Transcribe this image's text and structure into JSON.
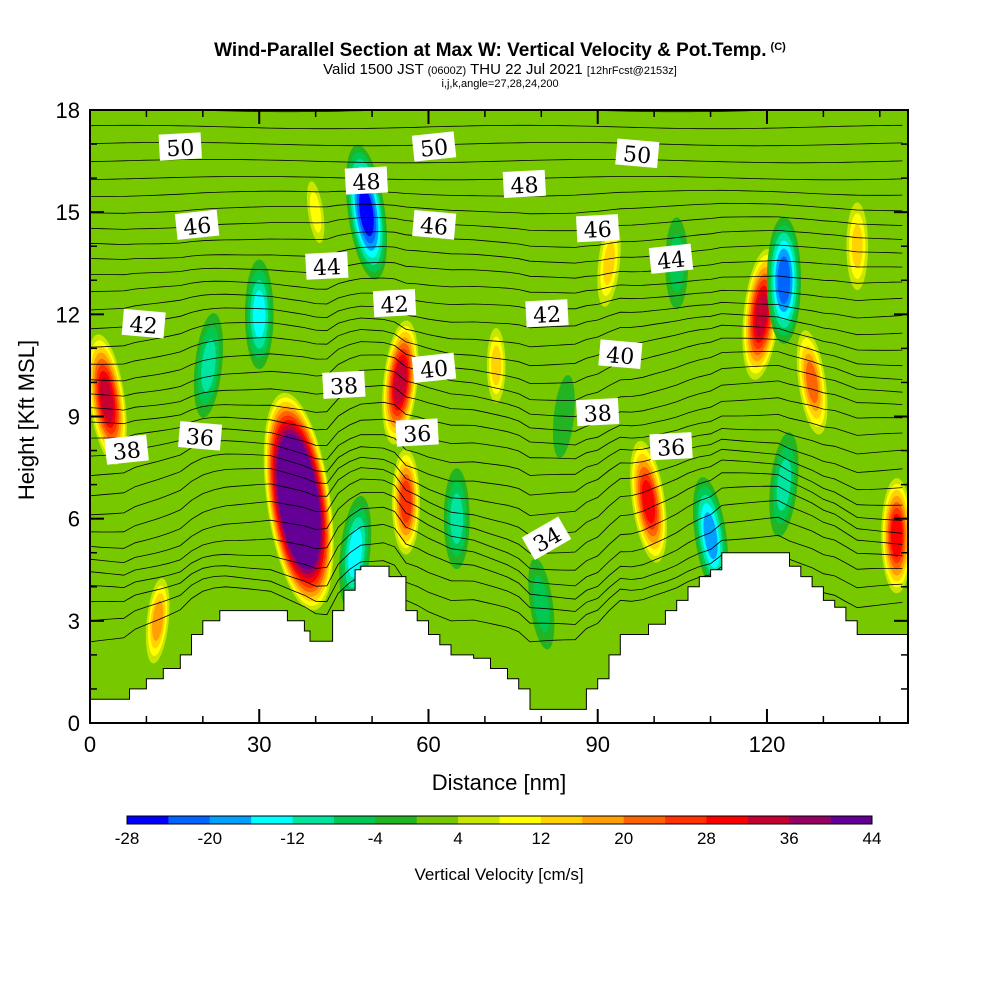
{
  "header": {
    "title": "Wind-Parallel Section at Max W: Vertical Velocity & Pot.Temp.",
    "copyright": "(C)",
    "valid_prefix": "Valid 1500 JST",
    "valid_z": "(0600Z)",
    "valid_date": "THU 22 Jul 2021",
    "fcst": "[12hrFcst@2153z]",
    "indices": "i,j,k,angle=27,28,24,200"
  },
  "chart_data": {
    "type": "heatmap",
    "xlabel": "Distance [nm]",
    "ylabel": "Height [Kft MSL]",
    "xlim": [
      0,
      145
    ],
    "ylim": [
      0,
      18
    ],
    "x_ticks": [
      0,
      30,
      60,
      90,
      120
    ],
    "y_ticks": [
      0,
      3,
      6,
      9,
      12,
      15,
      18
    ],
    "colorbar": {
      "label": "Vertical Velocity [cm/s]",
      "tick_labels": [
        "-28",
        "-20",
        "-12",
        "-4",
        "4",
        "12",
        "20",
        "28",
        "36",
        "44"
      ],
      "colors": [
        "#0000ff",
        "#0064ff",
        "#00a0ff",
        "#00ffff",
        "#00e6a0",
        "#00c850",
        "#22b422",
        "#78c800",
        "#c8e600",
        "#ffff00",
        "#ffd200",
        "#ffa000",
        "#ff6400",
        "#ff3200",
        "#ff0000",
        "#c80032",
        "#960064",
        "#640096"
      ]
    },
    "background_value": -4,
    "velocity_cells": [
      {
        "x": 37,
        "y": 6.5,
        "w": 68
      },
      {
        "x": 55,
        "y": 10.0,
        "w": 30
      },
      {
        "x": 56,
        "y": 6.5,
        "w": 22
      },
      {
        "x": 3,
        "y": 9.5,
        "w": 28
      },
      {
        "x": 21,
        "y": 10.5,
        "w": -16
      },
      {
        "x": 30,
        "y": 12.0,
        "w": -18
      },
      {
        "x": 49,
        "y": 15.0,
        "w": -30
      },
      {
        "x": 47,
        "y": 5.0,
        "w": -20
      },
      {
        "x": 65,
        "y": 6.0,
        "w": -14
      },
      {
        "x": 99,
        "y": 6.5,
        "w": 24
      },
      {
        "x": 119,
        "y": 12.0,
        "w": 28
      },
      {
        "x": 123,
        "y": 13.0,
        "w": -26
      },
      {
        "x": 110,
        "y": 5.5,
        "w": -22
      },
      {
        "x": 123,
        "y": 7.0,
        "w": -16
      },
      {
        "x": 143,
        "y": 5.5,
        "w": 26
      },
      {
        "x": 128,
        "y": 10.0,
        "w": 16
      },
      {
        "x": 12,
        "y": 3.0,
        "w": 14
      },
      {
        "x": 72,
        "y": 10.5,
        "w": 10
      },
      {
        "x": 80,
        "y": 3.5,
        "w": -10
      },
      {
        "x": 92,
        "y": 13.5,
        "w": 8
      },
      {
        "x": 104,
        "y": 13.5,
        "w": -10
      },
      {
        "x": 40,
        "y": 15.0,
        "w": 6
      },
      {
        "x": 84,
        "y": 9.0,
        "w": -6
      },
      {
        "x": 136,
        "y": 14.0,
        "w": 8
      }
    ],
    "theta_labels": [
      {
        "text": "50",
        "x": 16,
        "y": 16.9
      },
      {
        "text": "50",
        "x": 61,
        "y": 16.9
      },
      {
        "text": "50",
        "x": 97,
        "y": 16.7
      },
      {
        "text": "48",
        "x": 49,
        "y": 15.9
      },
      {
        "text": "48",
        "x": 77,
        "y": 15.8
      },
      {
        "text": "46",
        "x": 19,
        "y": 14.6
      },
      {
        "text": "46",
        "x": 61,
        "y": 14.6
      },
      {
        "text": "46",
        "x": 90,
        "y": 14.5
      },
      {
        "text": "44",
        "x": 42,
        "y": 13.4
      },
      {
        "text": "44",
        "x": 103,
        "y": 13.6
      },
      {
        "text": "42",
        "x": 9.5,
        "y": 11.7
      },
      {
        "text": "42",
        "x": 54,
        "y": 12.3
      },
      {
        "text": "42",
        "x": 81,
        "y": 12.0
      },
      {
        "text": "40",
        "x": 61,
        "y": 10.4
      },
      {
        "text": "40",
        "x": 94,
        "y": 10.8
      },
      {
        "text": "38",
        "x": 45,
        "y": 9.9
      },
      {
        "text": "38",
        "x": 90,
        "y": 9.1
      },
      {
        "text": "38",
        "x": 6.5,
        "y": 8.0
      },
      {
        "text": "36",
        "x": 19.5,
        "y": 8.4
      },
      {
        "text": "36",
        "x": 58,
        "y": 8.5
      },
      {
        "text": "36",
        "x": 103,
        "y": 8.1
      },
      {
        "text": "34",
        "x": 81,
        "y": 5.4
      }
    ],
    "terrain": [
      [
        0,
        0.7
      ],
      [
        6,
        0.7
      ],
      [
        7,
        1.0
      ],
      [
        10,
        1.3
      ],
      [
        13,
        1.6
      ],
      [
        16,
        2.0
      ],
      [
        18,
        2.6
      ],
      [
        20,
        3.0
      ],
      [
        23,
        3.3
      ],
      [
        32,
        3.3
      ],
      [
        35,
        3.0
      ],
      [
        38,
        2.7
      ],
      [
        39,
        2.4
      ],
      [
        42,
        2.4
      ],
      [
        43,
        3.3
      ],
      [
        45,
        3.9
      ],
      [
        47,
        4.5
      ],
      [
        48,
        4.6
      ],
      [
        52,
        4.6
      ],
      [
        53,
        4.3
      ],
      [
        55,
        4.3
      ],
      [
        56,
        3.3
      ],
      [
        58,
        3.0
      ],
      [
        60,
        2.6
      ],
      [
        62,
        2.3
      ],
      [
        64,
        2.0
      ],
      [
        68,
        1.9
      ],
      [
        71,
        1.6
      ],
      [
        74,
        1.3
      ],
      [
        76,
        1.0
      ],
      [
        78,
        0.4
      ],
      [
        87,
        0.4
      ],
      [
        88,
        1.0
      ],
      [
        90,
        1.3
      ],
      [
        92,
        2.0
      ],
      [
        94,
        2.6
      ],
      [
        97,
        2.6
      ],
      [
        99,
        2.9
      ],
      [
        102,
        3.3
      ],
      [
        104,
        3.6
      ],
      [
        106,
        4.0
      ],
      [
        108,
        4.3
      ],
      [
        110,
        4.5
      ],
      [
        112,
        5.0
      ],
      [
        122,
        5.0
      ],
      [
        124,
        4.6
      ],
      [
        126,
        4.3
      ],
      [
        128,
        4.0
      ],
      [
        130,
        3.6
      ],
      [
        132,
        3.4
      ],
      [
        134,
        3.0
      ],
      [
        136,
        2.6
      ],
      [
        145,
        2.6
      ]
    ]
  }
}
